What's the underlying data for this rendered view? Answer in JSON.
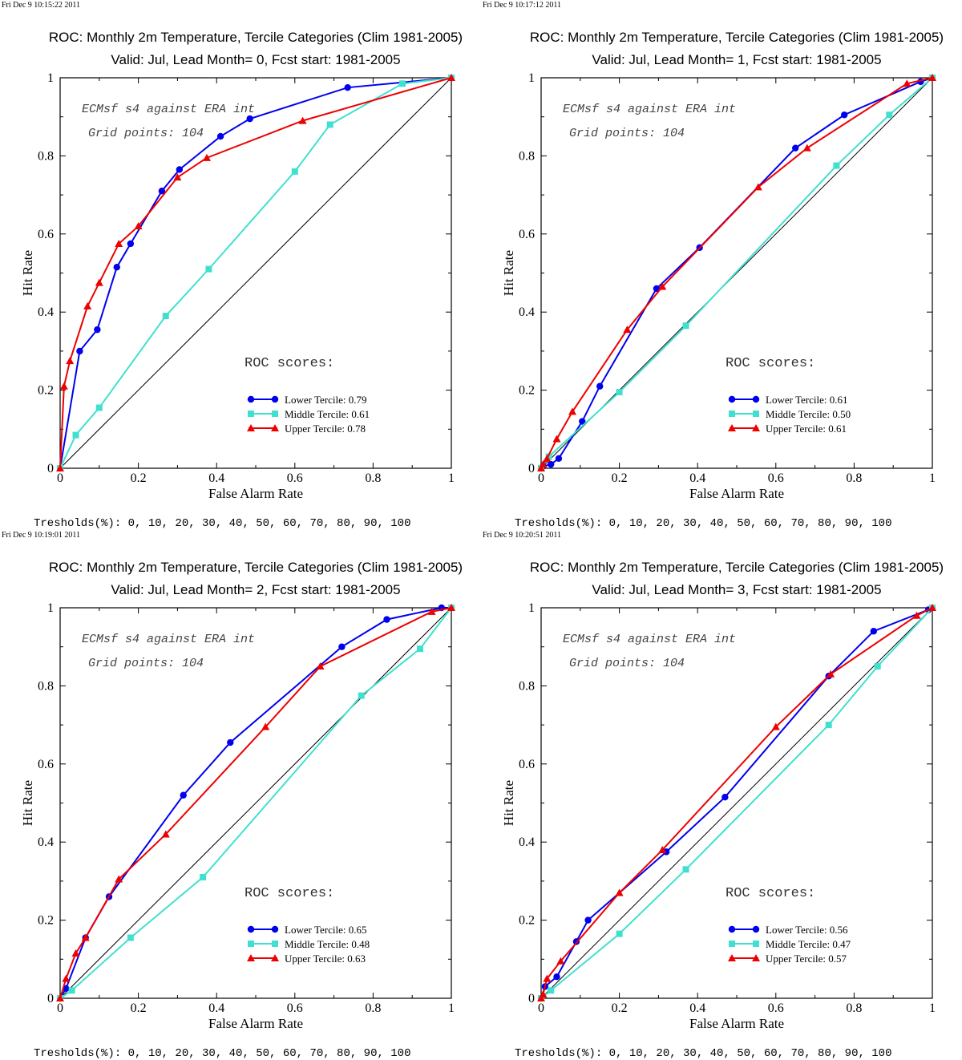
{
  "colors": {
    "lower": "#0000ee",
    "middle": "#40e0d0",
    "upper": "#ee0000",
    "diagonal": "#000000",
    "axes": "#000000"
  },
  "chart_data": [
    {
      "type": "line",
      "timestamp": "Fri Dec  9 10:15:22 2011",
      "title": "ROC: Monthly 2m Temperature, Tercile Categories (Clim 1981-2005)",
      "subtitle": "Valid: Jul, Lead Month= 0, Fcst start: 1981-2005",
      "xlabel": "False Alarm Rate",
      "ylabel": "Hit Rate",
      "xlim": [
        0,
        1
      ],
      "ylim": [
        0,
        1
      ],
      "xticks": [
        "0",
        "0.2",
        "0.4",
        "0.6",
        "0.8",
        "1"
      ],
      "yticks": [
        "0",
        "0.2",
        "0.4",
        "0.6",
        "0.8",
        "1"
      ],
      "annotation_1": "ECMsf s4 against ERA int",
      "annotation_2": "Grid points:  104",
      "scores_heading": "ROC scores:",
      "thresholds": "Tresholds(%): 0, 10, 20, 30, 40, 50, 60, 70, 80, 90, 100",
      "series": [
        {
          "name": "Lower Tercile: 0.79",
          "x": [
            0,
            0.05,
            0.095,
            0.145,
            0.18,
            0.26,
            0.305,
            0.41,
            0.485,
            0.735,
            1
          ],
          "y": [
            0,
            0.3,
            0.355,
            0.515,
            0.575,
            0.71,
            0.765,
            0.85,
            0.895,
            0.975,
            1
          ]
        },
        {
          "name": "Middle Tercile: 0.61",
          "x": [
            0,
            0.04,
            0.1,
            0.27,
            0.38,
            0.6,
            0.69,
            0.875,
            1
          ],
          "y": [
            0,
            0.085,
            0.155,
            0.39,
            0.51,
            0.76,
            0.88,
            0.985,
            1
          ]
        },
        {
          "name": "Upper Tercile: 0.78",
          "x": [
            0,
            0.01,
            0.025,
            0.07,
            0.1,
            0.15,
            0.2,
            0.3,
            0.375,
            0.62,
            1
          ],
          "y": [
            0,
            0.21,
            0.275,
            0.415,
            0.475,
            0.575,
            0.62,
            0.745,
            0.795,
            0.89,
            1
          ]
        }
      ]
    },
    {
      "type": "line",
      "timestamp": "Fri Dec  9 10:17:12 2011",
      "title": "ROC: Monthly 2m Temperature, Tercile Categories (Clim 1981-2005)",
      "subtitle": "Valid: Jul, Lead Month= 1, Fcst start: 1981-2005",
      "xlabel": "False Alarm Rate",
      "ylabel": "Hit Rate",
      "xlim": [
        0,
        1
      ],
      "ylim": [
        0,
        1
      ],
      "xticks": [
        "0",
        "0.2",
        "0.4",
        "0.6",
        "0.8",
        "1"
      ],
      "yticks": [
        "0",
        "0.2",
        "0.4",
        "0.6",
        "0.8",
        "1"
      ],
      "annotation_1": "ECMsf s4 against ERA int",
      "annotation_2": "Grid points:  104",
      "scores_heading": "ROC scores:",
      "thresholds": "Tresholds(%): 0, 10, 20, 30, 40, 50, 60, 70, 80, 90, 100",
      "series": [
        {
          "name": "Lower Tercile: 0.61",
          "x": [
            0,
            0.005,
            0.025,
            0.045,
            0.105,
            0.15,
            0.295,
            0.405,
            0.65,
            0.775,
            0.97,
            1
          ],
          "y": [
            0,
            0.005,
            0.01,
            0.025,
            0.12,
            0.21,
            0.46,
            0.565,
            0.82,
            0.905,
            0.99,
            1
          ]
        },
        {
          "name": "Middle Tercile: 0.50",
          "x": [
            0,
            0.02,
            0.2,
            0.37,
            0.755,
            0.89,
            1
          ],
          "y": [
            0,
            0.03,
            0.195,
            0.365,
            0.775,
            0.905,
            1
          ]
        },
        {
          "name": "Upper Tercile: 0.61",
          "x": [
            0,
            0.005,
            0.015,
            0.04,
            0.08,
            0.22,
            0.31,
            0.555,
            0.68,
            0.935,
            1
          ],
          "y": [
            0,
            0.01,
            0.025,
            0.075,
            0.145,
            0.355,
            0.465,
            0.72,
            0.82,
            0.985,
            1
          ]
        }
      ]
    },
    {
      "type": "line",
      "timestamp": "Fri Dec  9 10:19:01 2011",
      "title": "ROC: Monthly 2m Temperature, Tercile Categories (Clim 1981-2005)",
      "subtitle": "Valid: Jul, Lead Month= 2, Fcst start: 1981-2005",
      "xlabel": "False Alarm Rate",
      "ylabel": "Hit Rate",
      "xlim": [
        0,
        1
      ],
      "ylim": [
        0,
        1
      ],
      "xticks": [
        "0",
        "0.2",
        "0.4",
        "0.6",
        "0.8",
        "1"
      ],
      "yticks": [
        "0",
        "0.2",
        "0.4",
        "0.6",
        "0.8",
        "1"
      ],
      "annotation_1": "ECMsf s4 against ERA int",
      "annotation_2": "Grid points:  104",
      "scores_heading": "ROC scores:",
      "thresholds": "Tresholds(%): 0, 10, 20, 30, 40, 50, 60, 70, 80, 90, 100",
      "series": [
        {
          "name": "Lower Tercile: 0.65",
          "x": [
            0,
            0.015,
            0.065,
            0.125,
            0.315,
            0.435,
            0.72,
            0.835,
            0.975,
            1
          ],
          "y": [
            0,
            0.025,
            0.155,
            0.26,
            0.52,
            0.655,
            0.9,
            0.97,
            1,
            1
          ]
        },
        {
          "name": "Middle Tercile: 0.48",
          "x": [
            0,
            0.03,
            0.18,
            0.365,
            0.77,
            0.92,
            1
          ],
          "y": [
            0,
            0.02,
            0.155,
            0.31,
            0.775,
            0.895,
            1
          ]
        },
        {
          "name": "Upper Tercile: 0.63",
          "x": [
            0,
            0.015,
            0.04,
            0.065,
            0.15,
            0.27,
            0.525,
            0.665,
            0.95,
            1
          ],
          "y": [
            0,
            0.05,
            0.115,
            0.155,
            0.305,
            0.42,
            0.695,
            0.85,
            0.99,
            1
          ]
        }
      ]
    },
    {
      "type": "line",
      "timestamp": "Fri Dec  9 10:20:51 2011",
      "title": "ROC: Monthly 2m Temperature, Tercile Categories (Clim 1981-2005)",
      "subtitle": "Valid: Jul, Lead Month= 3, Fcst start: 1981-2005",
      "xlabel": "False Alarm Rate",
      "ylabel": "Hit Rate",
      "xlim": [
        0,
        1
      ],
      "ylim": [
        0,
        1
      ],
      "xticks": [
        "0",
        "0.2",
        "0.4",
        "0.6",
        "0.8",
        "1"
      ],
      "yticks": [
        "0",
        "0.2",
        "0.4",
        "0.6",
        "0.8",
        "1"
      ],
      "annotation_1": "ECMsf s4 against ERA int",
      "annotation_2": "Grid points:  104",
      "scores_heading": "ROC scores:",
      "thresholds": "Tresholds(%): 0, 10, 20, 30, 40, 50, 60, 70, 80, 90, 100",
      "series": [
        {
          "name": "Lower Tercile: 0.56",
          "x": [
            0,
            0.01,
            0.04,
            0.09,
            0.12,
            0.32,
            0.47,
            0.735,
            0.85,
            0.99,
            1
          ],
          "y": [
            0,
            0.03,
            0.055,
            0.145,
            0.2,
            0.375,
            0.515,
            0.825,
            0.94,
            0.995,
            1
          ]
        },
        {
          "name": "Middle Tercile: 0.47",
          "x": [
            0,
            0.025,
            0.2,
            0.37,
            0.735,
            0.86,
            1
          ],
          "y": [
            0,
            0.02,
            0.165,
            0.33,
            0.7,
            0.85,
            1
          ]
        },
        {
          "name": "Upper Tercile: 0.57",
          "x": [
            0,
            0.005,
            0.015,
            0.05,
            0.2,
            0.31,
            0.6,
            0.74,
            0.96,
            1
          ],
          "y": [
            0,
            0.01,
            0.05,
            0.095,
            0.27,
            0.38,
            0.695,
            0.83,
            0.98,
            1
          ]
        }
      ]
    }
  ]
}
